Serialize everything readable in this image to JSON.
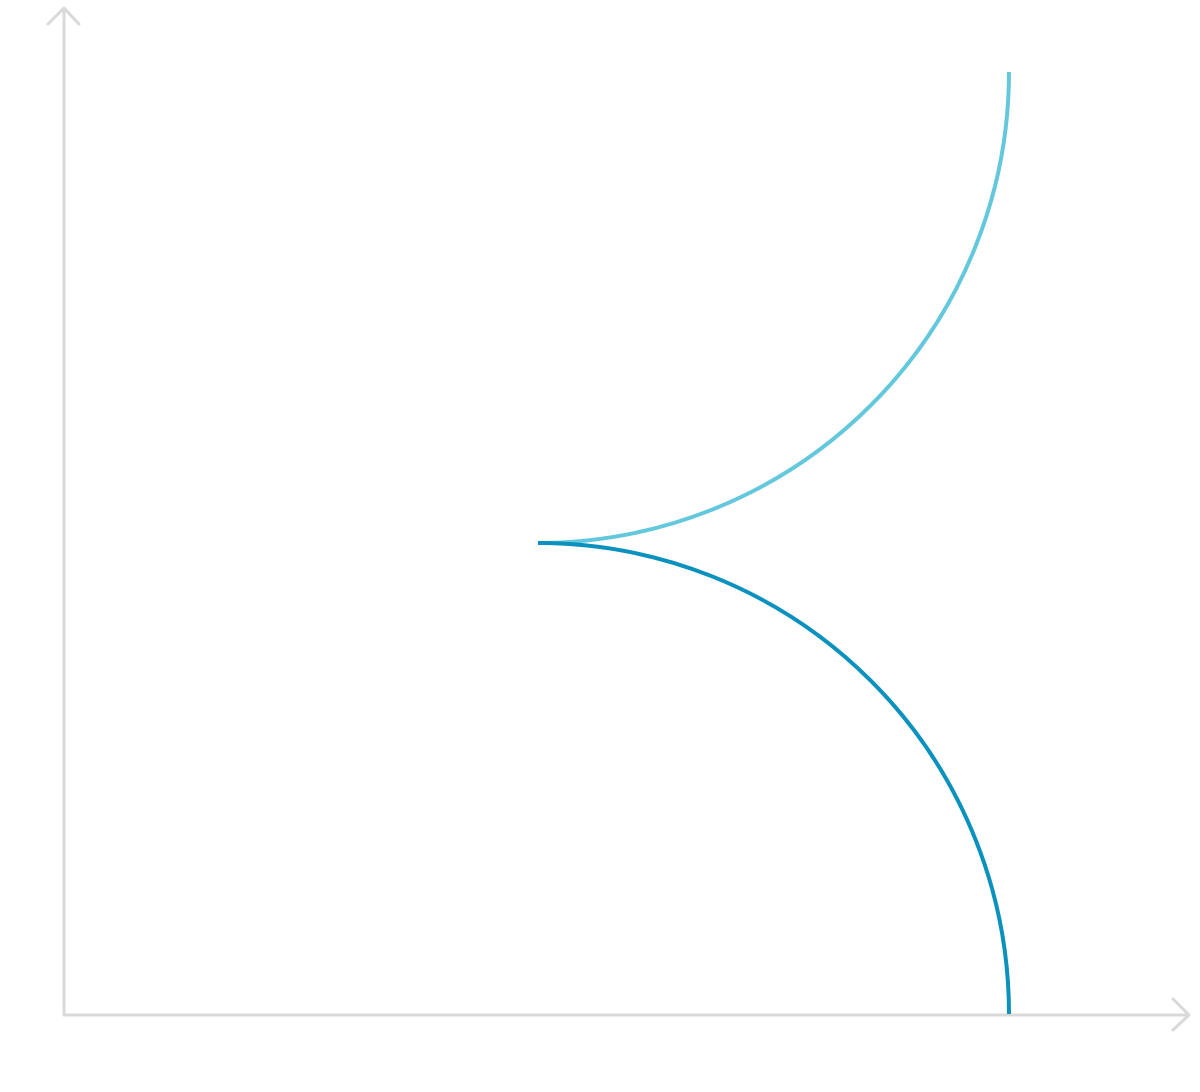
{
  "colors": {
    "axis": "#d9d9d9",
    "upper_curve": "#64c8dc",
    "lower_curve": "#0a91be"
  },
  "axes": {
    "x_arrow": "right",
    "y_arrow": "up"
  },
  "curves": [
    {
      "id": "upper",
      "shape": "quarter-circle",
      "description_icon": "arc-icon",
      "color_key": "upper_curve"
    },
    {
      "id": "lower",
      "shape": "quarter-circle",
      "description_icon": "arc-icon",
      "color_key": "lower_curve"
    }
  ]
}
